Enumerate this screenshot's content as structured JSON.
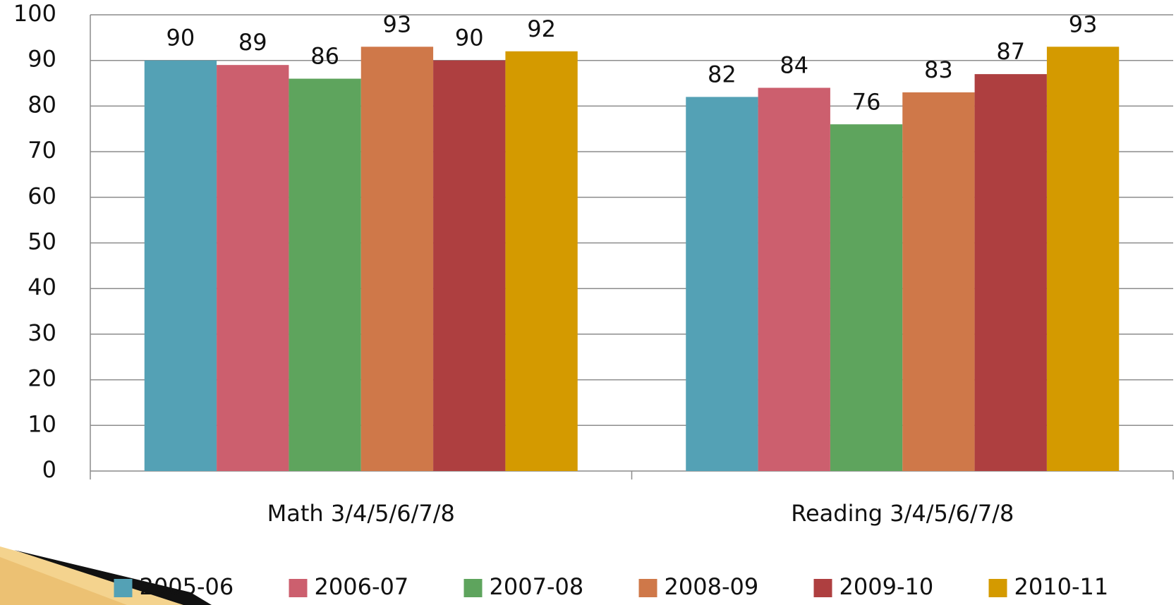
{
  "chart_data": {
    "type": "bar",
    "categories": [
      "Math 3/4/5/6/7/8",
      "Reading 3/4/5/6/7/8"
    ],
    "series": [
      {
        "name": "2005-06",
        "color": "#54a1b5",
        "values": [
          90,
          82
        ]
      },
      {
        "name": "2006-07",
        "color": "#cc5f6e",
        "values": [
          89,
          84
        ]
      },
      {
        "name": "2007-08",
        "color": "#5ea45d",
        "values": [
          86,
          76
        ]
      },
      {
        "name": "2008-09",
        "color": "#cf7849",
        "values": [
          93,
          83
        ]
      },
      {
        "name": "2009-10",
        "color": "#ae3f40",
        "values": [
          90,
          87
        ]
      },
      {
        "name": "2010-11",
        "color": "#d49a00",
        "values": [
          92,
          93
        ]
      }
    ],
    "ylim": [
      0,
      100
    ],
    "yticks": [
      0,
      10,
      20,
      30,
      40,
      50,
      60,
      70,
      80,
      90,
      100
    ],
    "grid": true,
    "legend": "bottom"
  }
}
